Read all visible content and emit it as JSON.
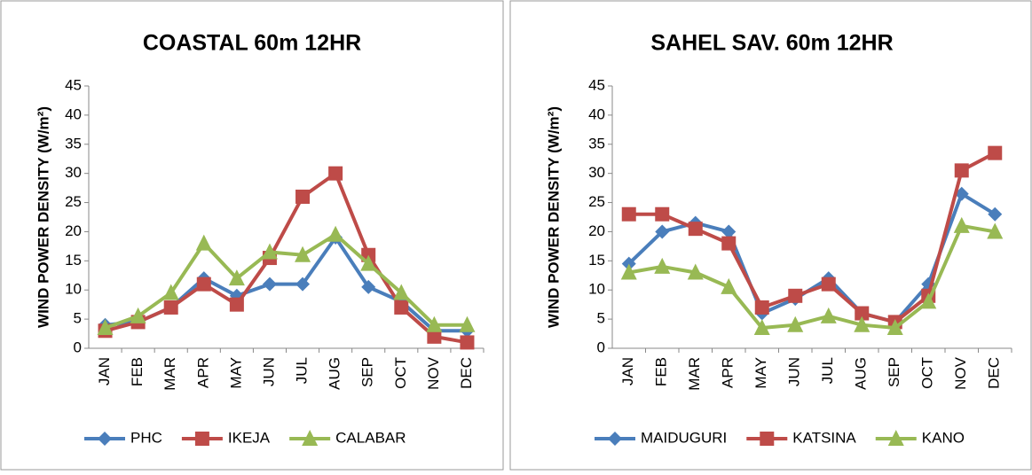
{
  "chart_data": [
    {
      "type": "line",
      "title": "COASTAL 60m 12HR",
      "y_label": "WIND POWER DENSITY (W/m²)",
      "categories": [
        "JAN",
        "FEB",
        "MAR",
        "APR",
        "MAY",
        "JUN",
        "JUL",
        "AUG",
        "SEP",
        "OCT",
        "NOV",
        "DEC"
      ],
      "ylim": [
        0,
        45
      ],
      "yticks": [
        0,
        5,
        10,
        15,
        20,
        25,
        30,
        35,
        40,
        45
      ],
      "grid": false,
      "legend": "bottom",
      "series": [
        {
          "name": "PHC",
          "color": "#4a7ebb",
          "marker": "diamond",
          "values": [
            4,
            4.5,
            7,
            12,
            9,
            11,
            11,
            19,
            10.5,
            8,
            3,
            3
          ]
        },
        {
          "name": "IKEJA",
          "color": "#be4b48",
          "marker": "square",
          "values": [
            3,
            4.5,
            7,
            11,
            7.5,
            15.5,
            26,
            30,
            16,
            7,
            2,
            1
          ]
        },
        {
          "name": "CALABAR",
          "color": "#98b954",
          "marker": "triangle",
          "values": [
            3.5,
            5.5,
            9.5,
            18,
            12,
            16.5,
            16,
            19.5,
            14.5,
            9.5,
            4,
            4
          ]
        }
      ]
    },
    {
      "type": "line",
      "title": "SAHEL SAV. 60m 12HR",
      "y_label": "WIND POWER DENSITY (W/m²)",
      "categories": [
        "JAN",
        "FEB",
        "MAR",
        "APR",
        "MAY",
        "JUN",
        "JUL",
        "AUG",
        "SEP",
        "OCT",
        "NOV",
        "DEC"
      ],
      "ylim": [
        0,
        45
      ],
      "yticks": [
        0,
        5,
        10,
        15,
        20,
        25,
        30,
        35,
        40,
        45
      ],
      "grid": false,
      "legend": "bottom",
      "series": [
        {
          "name": "MAIDUGURI",
          "color": "#4a7ebb",
          "marker": "diamond",
          "values": [
            14.5,
            20,
            21.5,
            20,
            6,
            8.5,
            12,
            6,
            4.5,
            11,
            26.5,
            23
          ]
        },
        {
          "name": "KATSINA",
          "color": "#be4b48",
          "marker": "square",
          "values": [
            23,
            23,
            20.5,
            18,
            7,
            9,
            11,
            6,
            4.5,
            9,
            30.5,
            33.5
          ]
        },
        {
          "name": "KANO",
          "color": "#98b954",
          "marker": "triangle",
          "values": [
            13,
            14,
            13,
            10.5,
            3.5,
            4,
            5.5,
            4,
            3.5,
            8,
            21,
            20
          ]
        }
      ]
    }
  ]
}
